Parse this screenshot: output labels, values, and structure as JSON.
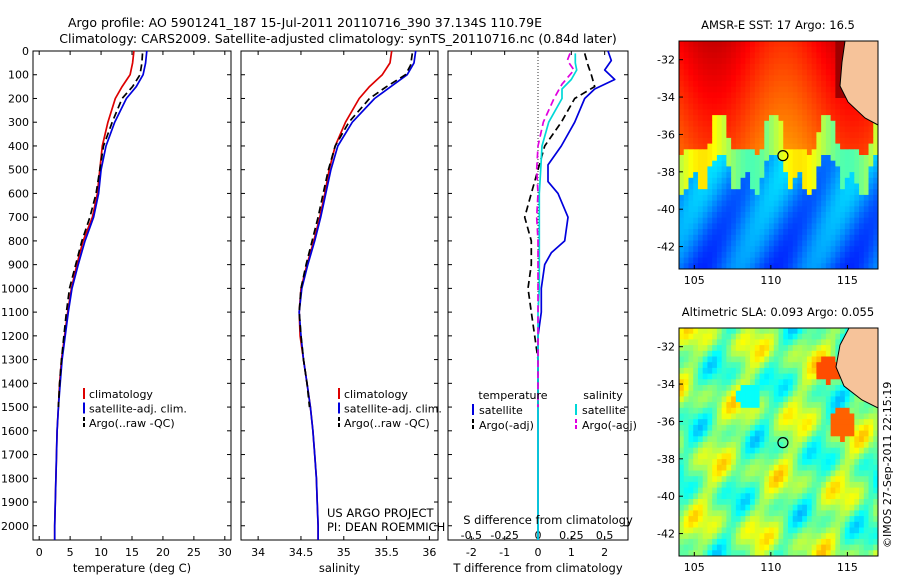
{
  "header": {
    "line1": "Argo profile: AO 5901241_187 15-Jul-2011 20110716_390 37.134S 110.79E",
    "line2": "Climatology: CARS2009. Satellite-adjusted climatology: synTS_20110716.nc (0.84d later)"
  },
  "credits": {
    "project": "US ARGO PROJECT",
    "pi": "PI: DEAN ROEMMICH",
    "stamp": "©IMOS 27-Sep-2011 22:15:19"
  },
  "colors": {
    "climatology": "#dd0000",
    "satellite": "#0000dd",
    "argo": "#000000",
    "satellite_s": "#00d8d8",
    "argo_s": "#e000e0"
  },
  "chart_data": [
    {
      "id": "temperature",
      "type": "line",
      "xlabel": "temperature (deg C)",
      "ylabel": "",
      "xlim": [
        -1,
        31
      ],
      "ylim": [
        2060,
        0
      ],
      "xticks": [
        0,
        5,
        10,
        15,
        20,
        25,
        30
      ],
      "yticks": [
        0,
        100,
        200,
        300,
        400,
        500,
        600,
        700,
        800,
        900,
        1000,
        1100,
        1200,
        1300,
        1400,
        1500,
        1600,
        1700,
        1800,
        1900,
        2000
      ],
      "legend": [
        "climatology",
        "satellite-adj. clim.",
        "Argo(..raw -QC)"
      ],
      "series": [
        {
          "name": "climatology",
          "color": "#dd0000",
          "dash": "",
          "points": [
            [
              15.3,
              0
            ],
            [
              15.1,
              50
            ],
            [
              14.7,
              100
            ],
            [
              13.4,
              150
            ],
            [
              12.3,
              200
            ],
            [
              11.1,
              300
            ],
            [
              10.2,
              400
            ],
            [
              9.8,
              500
            ],
            [
              9.4,
              600
            ],
            [
              8.6,
              700
            ],
            [
              7.1,
              800
            ],
            [
              6.1,
              900
            ],
            [
              5.2,
              1000
            ],
            [
              4.6,
              1100
            ],
            [
              4.1,
              1200
            ],
            [
              3.6,
              1300
            ],
            [
              3.3,
              1400
            ],
            [
              3.1,
              1500
            ],
            [
              2.9,
              1600
            ],
            [
              2.8,
              1700
            ],
            [
              2.7,
              1800
            ],
            [
              2.6,
              1900
            ],
            [
              2.5,
              2000
            ],
            [
              2.5,
              2060
            ]
          ]
        },
        {
          "name": "satellite-adj. clim.",
          "color": "#0000dd",
          "dash": "",
          "points": [
            [
              17.4,
              0
            ],
            [
              17.2,
              50
            ],
            [
              16.8,
              100
            ],
            [
              15.7,
              150
            ],
            [
              14.1,
              200
            ],
            [
              12.2,
              300
            ],
            [
              10.8,
              400
            ],
            [
              10.0,
              500
            ],
            [
              9.6,
              600
            ],
            [
              8.8,
              700
            ],
            [
              7.4,
              800
            ],
            [
              6.3,
              900
            ],
            [
              5.3,
              1000
            ],
            [
              4.7,
              1100
            ],
            [
              4.2,
              1200
            ],
            [
              3.7,
              1300
            ],
            [
              3.4,
              1400
            ],
            [
              3.1,
              1500
            ],
            [
              2.9,
              1600
            ],
            [
              2.8,
              1700
            ],
            [
              2.7,
              1800
            ],
            [
              2.6,
              1900
            ],
            [
              2.5,
              2000
            ],
            [
              2.5,
              2060
            ]
          ]
        },
        {
          "name": "Argo(..raw -QC)",
          "color": "#000000",
          "dash": "7,4",
          "points": [
            [
              16.7,
              10
            ],
            [
              16.6,
              50
            ],
            [
              16.3,
              100
            ],
            [
              15.1,
              150
            ],
            [
              13.4,
              200
            ],
            [
              11.8,
              300
            ],
            [
              10.4,
              400
            ],
            [
              9.8,
              500
            ],
            [
              9.2,
              600
            ],
            [
              8.2,
              700
            ],
            [
              6.9,
              800
            ],
            [
              5.9,
              900
            ],
            [
              4.9,
              1000
            ],
            [
              4.4,
              1100
            ],
            [
              4.0,
              1200
            ],
            [
              3.6,
              1300
            ],
            [
              3.3,
              1400
            ],
            [
              3.1,
              1500
            ]
          ]
        }
      ]
    },
    {
      "id": "salinity",
      "type": "line",
      "xlabel": "salinity",
      "ylabel": "",
      "xlim": [
        33.8,
        36.1
      ],
      "ylim": [
        2060,
        0
      ],
      "xticks": [
        34,
        34.5,
        35,
        35.5,
        36
      ],
      "xticklabels": [
        "34",
        "34.5",
        "35",
        "35.5",
        "36"
      ],
      "legend": [
        "climatology",
        "satellite-adj. clim.",
        "Argo(..raw -QC)"
      ],
      "series": [
        {
          "name": "climatology",
          "color": "#dd0000",
          "dash": "",
          "points": [
            [
              35.56,
              0
            ],
            [
              35.54,
              50
            ],
            [
              35.45,
              100
            ],
            [
              35.3,
              150
            ],
            [
              35.18,
              200
            ],
            [
              35.02,
              300
            ],
            [
              34.9,
              400
            ],
            [
              34.83,
              500
            ],
            [
              34.78,
              600
            ],
            [
              34.72,
              700
            ],
            [
              34.65,
              800
            ],
            [
              34.57,
              900
            ],
            [
              34.5,
              1000
            ],
            [
              34.48,
              1100
            ],
            [
              34.49,
              1200
            ],
            [
              34.53,
              1300
            ],
            [
              34.57,
              1400
            ],
            [
              34.61,
              1500
            ],
            [
              34.64,
              1600
            ],
            [
              34.66,
              1700
            ],
            [
              34.68,
              1800
            ],
            [
              34.69,
              1900
            ],
            [
              34.7,
              2000
            ],
            [
              34.7,
              2060
            ]
          ]
        },
        {
          "name": "satellite-adj. clim.",
          "color": "#0000dd",
          "dash": "",
          "points": [
            [
              35.84,
              0
            ],
            [
              35.82,
              50
            ],
            [
              35.74,
              100
            ],
            [
              35.55,
              150
            ],
            [
              35.36,
              200
            ],
            [
              35.1,
              300
            ],
            [
              34.93,
              400
            ],
            [
              34.85,
              500
            ],
            [
              34.79,
              600
            ],
            [
              34.73,
              700
            ],
            [
              34.66,
              800
            ],
            [
              34.58,
              900
            ],
            [
              34.51,
              1000
            ],
            [
              34.48,
              1100
            ],
            [
              34.5,
              1200
            ],
            [
              34.53,
              1300
            ],
            [
              34.57,
              1400
            ],
            [
              34.61,
              1500
            ],
            [
              34.64,
              1600
            ],
            [
              34.66,
              1700
            ],
            [
              34.68,
              1800
            ],
            [
              34.69,
              1900
            ],
            [
              34.7,
              2000
            ],
            [
              34.7,
              2060
            ]
          ]
        },
        {
          "name": "Argo(..raw -QC)",
          "color": "#000000",
          "dash": "7,4",
          "points": [
            [
              35.8,
              10
            ],
            [
              35.78,
              60
            ],
            [
              35.72,
              100
            ],
            [
              35.5,
              150
            ],
            [
              35.3,
              200
            ],
            [
              35.06,
              300
            ],
            [
              34.9,
              400
            ],
            [
              34.82,
              500
            ],
            [
              34.76,
              600
            ],
            [
              34.7,
              700
            ],
            [
              34.63,
              800
            ],
            [
              34.56,
              900
            ],
            [
              34.5,
              1000
            ],
            [
              34.48,
              1100
            ],
            [
              34.5,
              1200
            ],
            [
              34.53,
              1300
            ],
            [
              34.57,
              1400
            ],
            [
              34.6,
              1500
            ]
          ]
        }
      ]
    },
    {
      "id": "difference",
      "type": "line",
      "xlabel": "T difference from climatology",
      "xlabel2": "S difference from climatology",
      "xlim": [
        -2.7,
        2.7
      ],
      "xticks": [
        -2,
        -1,
        0,
        1,
        2
      ],
      "xticks2": [
        -0.5,
        -0.25,
        0,
        0.25,
        0.5
      ],
      "xticklabels2": [
        "-0.5",
        "-0.25",
        "0",
        "0.25",
        "0.5"
      ],
      "ylim": [
        2060,
        0
      ],
      "legend_title_t": "temperature",
      "legend_title_s": "salinity",
      "legend_t": [
        "satellite",
        "Argo(-adj)"
      ],
      "legend_s": [
        "satellite",
        "Argo(-adj)"
      ],
      "series": [
        {
          "name": "satellite",
          "var": "T",
          "color": "#0000dd",
          "dash": "",
          "points": [
            [
              2.1,
              0
            ],
            [
              2.2,
              40
            ],
            [
              2.0,
              80
            ],
            [
              2.3,
              120
            ],
            [
              1.7,
              160
            ],
            [
              1.4,
              200
            ],
            [
              1.1,
              300
            ],
            [
              0.7,
              400
            ],
            [
              0.3,
              480
            ],
            [
              0.3,
              550
            ],
            [
              0.6,
              600
            ],
            [
              0.9,
              700
            ],
            [
              0.8,
              800
            ],
            [
              0.4,
              850
            ],
            [
              0.2,
              900
            ],
            [
              0.1,
              1000
            ],
            [
              0.1,
              1100
            ],
            [
              0.0,
              1200
            ],
            [
              0.0,
              2060
            ]
          ]
        },
        {
          "name": "Argo(-adj)",
          "var": "T",
          "color": "#000000",
          "dash": "7,4",
          "points": [
            [
              1.4,
              10
            ],
            [
              1.5,
              60
            ],
            [
              1.6,
              100
            ],
            [
              1.7,
              150
            ],
            [
              1.1,
              200
            ],
            [
              0.7,
              300
            ],
            [
              0.2,
              400
            ],
            [
              0.0,
              500
            ],
            [
              -0.2,
              600
            ],
            [
              -0.4,
              700
            ],
            [
              -0.2,
              800
            ],
            [
              -0.2,
              900
            ],
            [
              -0.3,
              1000
            ],
            [
              -0.2,
              1100
            ],
            [
              -0.1,
              1200
            ],
            [
              0.0,
              1300
            ],
            [
              0.0,
              1400
            ],
            [
              0.0,
              1500
            ]
          ]
        },
        {
          "name": "satellite",
          "var": "S",
          "color": "#00d8d8",
          "dash": "",
          "points": [
            [
              0.28,
              10
            ],
            [
              0.28,
              50
            ],
            [
              0.29,
              80
            ],
            [
              0.25,
              120
            ],
            [
              0.18,
              160
            ],
            [
              0.18,
              200
            ],
            [
              0.08,
              300
            ],
            [
              0.03,
              400
            ],
            [
              0.02,
              500
            ],
            [
              0.01,
              600
            ],
            [
              0.01,
              700
            ],
            [
              0.01,
              800
            ],
            [
              0.01,
              900
            ],
            [
              0.01,
              1000
            ],
            [
              0.0,
              1100
            ],
            [
              0.0,
              1200
            ],
            [
              0.0,
              2060
            ]
          ]
        },
        {
          "name": "Argo(-adj)",
          "var": "S",
          "color": "#e000e0",
          "dash": "7,4",
          "points": [
            [
              0.24,
              10
            ],
            [
              0.22,
              40
            ],
            [
              0.27,
              80
            ],
            [
              0.18,
              140
            ],
            [
              0.12,
              200
            ],
            [
              0.04,
              300
            ],
            [
              0.0,
              400
            ],
            [
              -0.01,
              500
            ],
            [
              0.0,
              600
            ],
            [
              -0.01,
              700
            ],
            [
              0.0,
              800
            ],
            [
              0.0,
              900
            ],
            [
              0.0,
              1000
            ],
            [
              0.0,
              1100
            ],
            [
              0.0,
              1200
            ],
            [
              0.0,
              1300
            ],
            [
              0.0,
              1400
            ],
            [
              0.0,
              1500
            ]
          ]
        }
      ]
    },
    {
      "id": "sst_map",
      "type": "heatmap",
      "title": "AMSR-E SST: 17 Argo: 16.5",
      "xlim": [
        104,
        117
      ],
      "ylim": [
        -43.2,
        -31
      ],
      "xticks": [
        105,
        110,
        115
      ],
      "yticks": [
        -32,
        -34,
        -36,
        -38,
        -40,
        -42
      ],
      "yticklabels": [
        "-32",
        "-34",
        "-36",
        "-38",
        "-40",
        "-42"
      ],
      "marker": [
        110.79,
        -37.134
      ]
    },
    {
      "id": "sla_map",
      "type": "heatmap",
      "title": "Altimetric SLA: 0.093 Argo: 0.055",
      "xlim": [
        104,
        117
      ],
      "ylim": [
        -43.2,
        -31
      ],
      "xticks": [
        105,
        110,
        115
      ],
      "yticks": [
        -32,
        -34,
        -36,
        -38,
        -40,
        -42
      ],
      "yticklabels": [
        "-32",
        "-34",
        "-36",
        "-38",
        "-40",
        "-42"
      ],
      "marker": [
        110.79,
        -37.134
      ]
    }
  ]
}
